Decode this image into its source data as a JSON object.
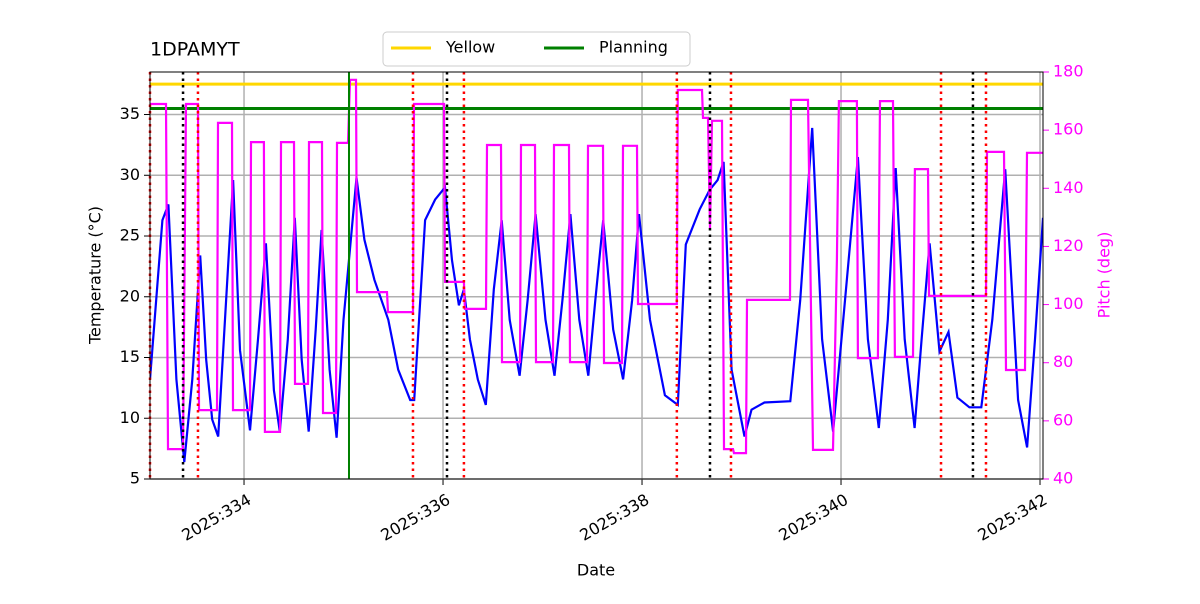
{
  "chart_data": {
    "type": "line",
    "title": "1DPAMYT",
    "x_label": "Date",
    "y_label": "Temperature (°C)",
    "y2_label": "Pitch (deg)",
    "y2_color": "#ff00ff",
    "grid": true,
    "legend": "upper center",
    "xlim": [
      333.055,
      342.03
    ],
    "xticks": [
      {
        "value": 334,
        "label": "2025:334"
      },
      {
        "value": 336,
        "label": "2025:336"
      },
      {
        "value": 338,
        "label": "2025:338"
      },
      {
        "value": 340,
        "label": "2025:340"
      },
      {
        "value": 342,
        "label": "2025:342"
      }
    ],
    "ylim": [
      5,
      38.5
    ],
    "yticks": [
      5,
      10,
      15,
      20,
      25,
      30,
      35
    ],
    "y2lim": [
      40,
      180
    ],
    "y2ticks": [
      40,
      60,
      80,
      100,
      120,
      140,
      160,
      180
    ],
    "reference_lines": [
      {
        "name": "Yellow",
        "color": "#ffd700",
        "value": 37.5
      },
      {
        "name": "Planning",
        "color": "#008000",
        "value": 35.5
      }
    ],
    "vlines": [
      {
        "x": 333.055,
        "color": "#ff0000"
      },
      {
        "x": 333.537,
        "color": "#ff0000"
      },
      {
        "x": 335.698,
        "color": "#ff0000"
      },
      {
        "x": 336.21,
        "color": "#ff0000"
      },
      {
        "x": 338.35,
        "color": "#ff0000"
      },
      {
        "x": 338.894,
        "color": "#ff0000"
      },
      {
        "x": 341.005,
        "color": "#ff0000"
      },
      {
        "x": 341.457,
        "color": "#ff0000"
      },
      {
        "x": 333.387,
        "color": "#000000"
      },
      {
        "x": 336.04,
        "color": "#000000"
      },
      {
        "x": 338.683,
        "color": "#000000"
      },
      {
        "x": 341.326,
        "color": "#000000"
      },
      {
        "x": 335.055,
        "color": "#008000",
        "style": "solid"
      }
    ],
    "series": [
      {
        "color": "#0000ff",
        "x": [
          333.055,
          333.18,
          333.24,
          333.32,
          333.4,
          333.48,
          333.56,
          333.62,
          333.68,
          333.74,
          333.82,
          333.89,
          333.96,
          334.06,
          334.14,
          334.22,
          334.3,
          334.36,
          334.44,
          334.51,
          334.58,
          334.65,
          334.72,
          334.78,
          334.86,
          334.93,
          335.0,
          335.13,
          335.21,
          335.31,
          335.45,
          335.55,
          335.67,
          335.71,
          335.82,
          335.92,
          336.02,
          336.09,
          336.16,
          336.21,
          336.27,
          336.35,
          336.43,
          336.51,
          336.59,
          336.67,
          336.77,
          336.85,
          336.93,
          337.03,
          337.12,
          337.2,
          337.28,
          337.37,
          337.46,
          337.53,
          337.61,
          337.71,
          337.81,
          337.9,
          337.97,
          338.08,
          338.23,
          338.36,
          338.44,
          338.58,
          338.68,
          338.76,
          338.82,
          338.9,
          339.03,
          339.1,
          339.23,
          339.49,
          339.59,
          339.71,
          339.81,
          339.92,
          340.04,
          340.17,
          340.27,
          340.38,
          340.47,
          340.55,
          340.64,
          340.74,
          340.81,
          340.89,
          340.99,
          341.08,
          341.17,
          341.29,
          341.41,
          341.52,
          341.65,
          341.78,
          341.87,
          341.95,
          342.03
        ],
        "values": [
          13.2,
          26.3,
          27.6,
          13.2,
          6.4,
          13.2,
          23.4,
          14.8,
          9.9,
          8.5,
          19.7,
          29.6,
          15.6,
          9.0,
          16.5,
          24.4,
          12.3,
          8.9,
          16.5,
          26.5,
          14.8,
          8.9,
          17.3,
          25.5,
          14.0,
          8.4,
          18.1,
          29.8,
          24.7,
          21.4,
          18.1,
          14.0,
          11.5,
          11.5,
          26.3,
          28.0,
          29.0,
          23.0,
          19.3,
          20.6,
          16.5,
          13.2,
          11.1,
          20.6,
          26.3,
          18.1,
          13.5,
          19.7,
          26.8,
          18.1,
          13.5,
          19.7,
          26.8,
          18.1,
          13.5,
          19.7,
          26.3,
          17.3,
          13.2,
          19.7,
          26.8,
          18.1,
          11.9,
          11.1,
          24.3,
          27.2,
          28.8,
          29.6,
          31.1,
          14.0,
          8.5,
          10.7,
          11.3,
          11.4,
          19.7,
          33.9,
          16.5,
          8.9,
          19.7,
          31.5,
          16.5,
          9.2,
          18.1,
          30.6,
          16.5,
          9.2,
          16.5,
          24.4,
          15.5,
          17.1,
          11.7,
          10.9,
          10.9,
          18.1,
          30.5,
          11.5,
          7.6,
          16.5,
          26.5
        ]
      },
      {
        "color": "#ff00ff",
        "axis": "y2",
        "x": [
          333.055,
          333.216,
          333.236,
          333.387,
          333.417,
          333.537,
          333.547,
          333.728,
          333.738,
          333.879,
          333.889,
          334.06,
          334.07,
          334.2,
          334.21,
          334.362,
          334.372,
          334.502,
          334.512,
          334.643,
          334.653,
          334.784,
          334.794,
          334.924,
          334.934,
          335.045,
          335.065,
          335.125,
          335.135,
          335.437,
          335.447,
          335.698,
          335.708,
          336.01,
          336.02,
          336.21,
          336.22,
          336.432,
          336.442,
          336.583,
          336.593,
          336.774,
          336.784,
          336.924,
          336.934,
          337.105,
          337.115,
          337.266,
          337.276,
          337.447,
          337.457,
          337.608,
          337.618,
          337.799,
          337.809,
          337.95,
          337.96,
          338.35,
          338.36,
          338.603,
          338.613,
          338.663,
          338.683,
          338.703,
          338.804,
          338.824,
          338.914,
          338.924,
          339.045,
          339.055,
          339.487,
          339.497,
          339.668,
          339.718,
          339.919,
          339.959,
          339.979,
          340.16,
          340.17,
          340.371,
          340.392,
          340.522,
          340.542,
          340.723,
          340.743,
          340.874,
          340.884,
          341.457,
          341.467,
          341.638,
          341.658,
          341.849,
          341.869,
          342.03
        ],
        "values": [
          169,
          169,
          50.3,
          50.3,
          169,
          169,
          63.7,
          63.7,
          162.5,
          162.5,
          63.7,
          63.7,
          155.9,
          155.9,
          56.2,
          56.2,
          155.9,
          155.9,
          72.7,
          72.7,
          155.9,
          155.9,
          62.7,
          62.7,
          155.6,
          155.6,
          177.3,
          177.3,
          104.3,
          104.3,
          97.4,
          97.4,
          169,
          169,
          107.8,
          107.8,
          98.5,
          98.5,
          154.9,
          154.9,
          80.2,
          80.2,
          154.9,
          154.9,
          80.2,
          80.2,
          154.9,
          154.9,
          80.2,
          80.2,
          154.6,
          154.6,
          79.9,
          79.9,
          154.6,
          154.6,
          100.2,
          100.2,
          173.8,
          173.8,
          164.2,
          164.2,
          126.3,
          163.2,
          163.2,
          50.3,
          50.3,
          48.9,
          48.9,
          101.6,
          101.6,
          170.4,
          170.4,
          50.0,
          50.0,
          115.3,
          170.0,
          170.0,
          81.6,
          81.6,
          170.0,
          170.0,
          82.0,
          82.0,
          146.6,
          146.6,
          103.0,
          103.0,
          152.5,
          152.5,
          77.5,
          77.5,
          152.2,
          152.2
        ]
      }
    ]
  }
}
